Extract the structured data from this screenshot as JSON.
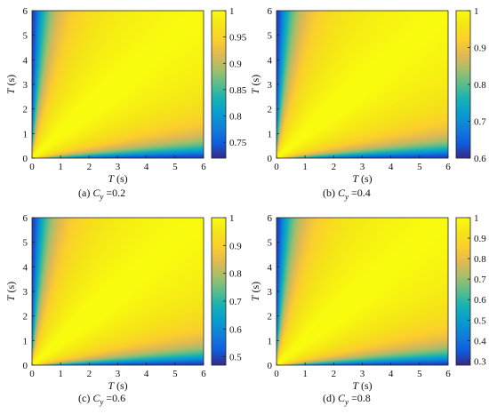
{
  "chart_data": [
    {
      "type": "heatmap",
      "caption": {
        "prefix": "(a) ",
        "var": "C",
        "sub": "y",
        "value": " =0.2"
      },
      "xlabel": {
        "var": "T",
        "unit": " (s)"
      },
      "ylabel": {
        "var": "T",
        "unit": " (s)"
      },
      "xlim": [
        0,
        6
      ],
      "ylim": [
        0,
        6
      ],
      "xticks": [
        "0",
        "1",
        "2",
        "3",
        "4",
        "5",
        "6"
      ],
      "yticks": [
        "0",
        "1",
        "2",
        "3",
        "4",
        "5",
        "6"
      ],
      "clim": [
        0.72,
        1
      ],
      "cticks": [
        {
          "v": 0.75,
          "t": "0.75"
        },
        {
          "v": 0.8,
          "t": "0.8"
        },
        {
          "v": 0.85,
          "t": "0.85"
        },
        {
          "v": 0.9,
          "t": "0.9"
        },
        {
          "v": 0.95,
          "t": "0.95"
        },
        {
          "v": 1,
          "t": "1"
        }
      ],
      "colormap": "parula"
    },
    {
      "type": "heatmap",
      "caption": {
        "prefix": "(b) ",
        "var": "C",
        "sub": "y",
        "value": " =0.4"
      },
      "xlabel": {
        "var": "T",
        "unit": " (s)"
      },
      "ylabel": {
        "var": "T",
        "unit": " (s)"
      },
      "xlim": [
        0,
        6
      ],
      "ylim": [
        0,
        6
      ],
      "xticks": [
        "0",
        "1",
        "2",
        "3",
        "4",
        "5",
        "6"
      ],
      "yticks": [
        "0",
        "1",
        "2",
        "3",
        "4",
        "5",
        "6"
      ],
      "clim": [
        0.6,
        1
      ],
      "cticks": [
        {
          "v": 0.6,
          "t": "0.6"
        },
        {
          "v": 0.7,
          "t": "0.7"
        },
        {
          "v": 0.8,
          "t": "0.8"
        },
        {
          "v": 0.9,
          "t": "0.9"
        },
        {
          "v": 1,
          "t": "1"
        }
      ],
      "colormap": "parula"
    },
    {
      "type": "heatmap",
      "caption": {
        "prefix": "(c) ",
        "var": "C",
        "sub": "y",
        "value": " =0.6"
      },
      "xlabel": {
        "var": "T",
        "unit": " (s)"
      },
      "ylabel": {
        "var": "T",
        "unit": " (s)"
      },
      "xlim": [
        0,
        6
      ],
      "ylim": [
        0,
        6
      ],
      "xticks": [
        "0",
        "1",
        "2",
        "3",
        "4",
        "5",
        "6"
      ],
      "yticks": [
        "0",
        "1",
        "2",
        "3",
        "4",
        "5",
        "6"
      ],
      "clim": [
        0.47,
        1
      ],
      "cticks": [
        {
          "v": 0.5,
          "t": "0.5"
        },
        {
          "v": 0.6,
          "t": "0.6"
        },
        {
          "v": 0.7,
          "t": "0.7"
        },
        {
          "v": 0.8,
          "t": "0.8"
        },
        {
          "v": 0.9,
          "t": "0.9"
        },
        {
          "v": 1,
          "t": "1"
        }
      ],
      "colormap": "parula"
    },
    {
      "type": "heatmap",
      "caption": {
        "prefix": "(d) ",
        "var": "C",
        "sub": "y",
        "value": " =0.8"
      },
      "xlabel": {
        "var": "T",
        "unit": " (s)"
      },
      "ylabel": {
        "var": "T",
        "unit": " (s)"
      },
      "xlim": [
        0,
        6
      ],
      "ylim": [
        0,
        6
      ],
      "xticks": [
        "0",
        "1",
        "2",
        "3",
        "4",
        "5",
        "6"
      ],
      "yticks": [
        "0",
        "1",
        "2",
        "3",
        "4",
        "5",
        "6"
      ],
      "clim": [
        0.28,
        1
      ],
      "cticks": [
        {
          "v": 0.3,
          "t": "0.3"
        },
        {
          "v": 0.4,
          "t": "0.4"
        },
        {
          "v": 0.5,
          "t": "0.5"
        },
        {
          "v": 0.6,
          "t": "0.6"
        },
        {
          "v": 0.7,
          "t": "0.7"
        },
        {
          "v": 0.8,
          "t": "0.8"
        },
        {
          "v": 0.9,
          "t": "0.9"
        },
        {
          "v": 1,
          "t": "1"
        }
      ],
      "colormap": "parula"
    }
  ]
}
